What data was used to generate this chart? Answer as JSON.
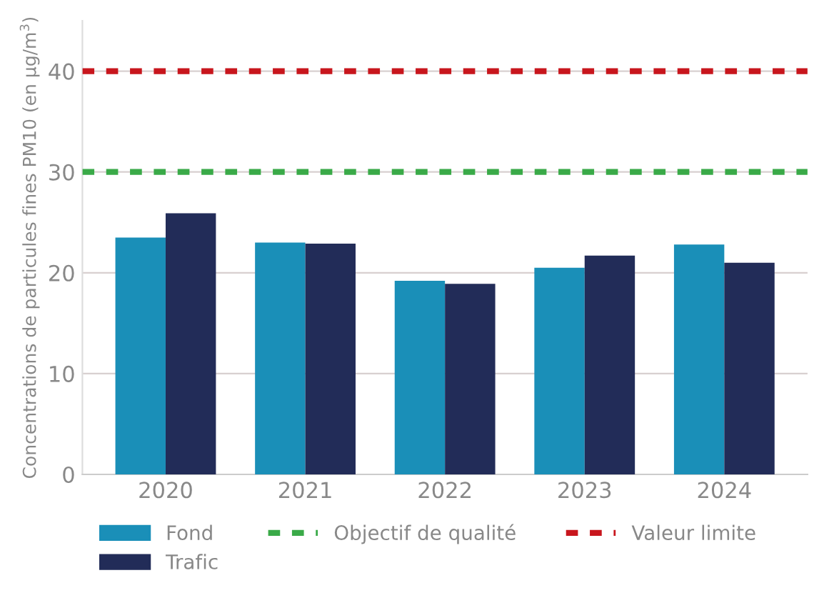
{
  "chart_data": {
    "type": "bar",
    "ylabel": "Concentrations de particules fines PM10 (en µg/m$^{3}$)",
    "categories": [
      "2020",
      "2021",
      "2022",
      "2023",
      "2024"
    ],
    "series": [
      {
        "name": "Fond",
        "color": "#1a8fb8",
        "values": [
          23.5,
          23.0,
          19.2,
          20.5,
          22.8
        ]
      },
      {
        "name": "Trafic",
        "color": "#222c58",
        "values": [
          25.9,
          22.9,
          18.9,
          21.7,
          21.0
        ]
      }
    ],
    "ylim": [
      0,
      45
    ],
    "yticks": [
      0,
      10,
      20,
      30,
      40
    ],
    "grid": "y",
    "legend": "bottom",
    "ref_lines": [
      {
        "axis": "y",
        "value": 30,
        "label": "Objectif de qualité",
        "color": "#3aaa48",
        "line_style": "dashed"
      },
      {
        "axis": "y",
        "value": 40,
        "label": "Valeur limite",
        "color": "#c8161d",
        "line_style": "dashed"
      }
    ]
  }
}
